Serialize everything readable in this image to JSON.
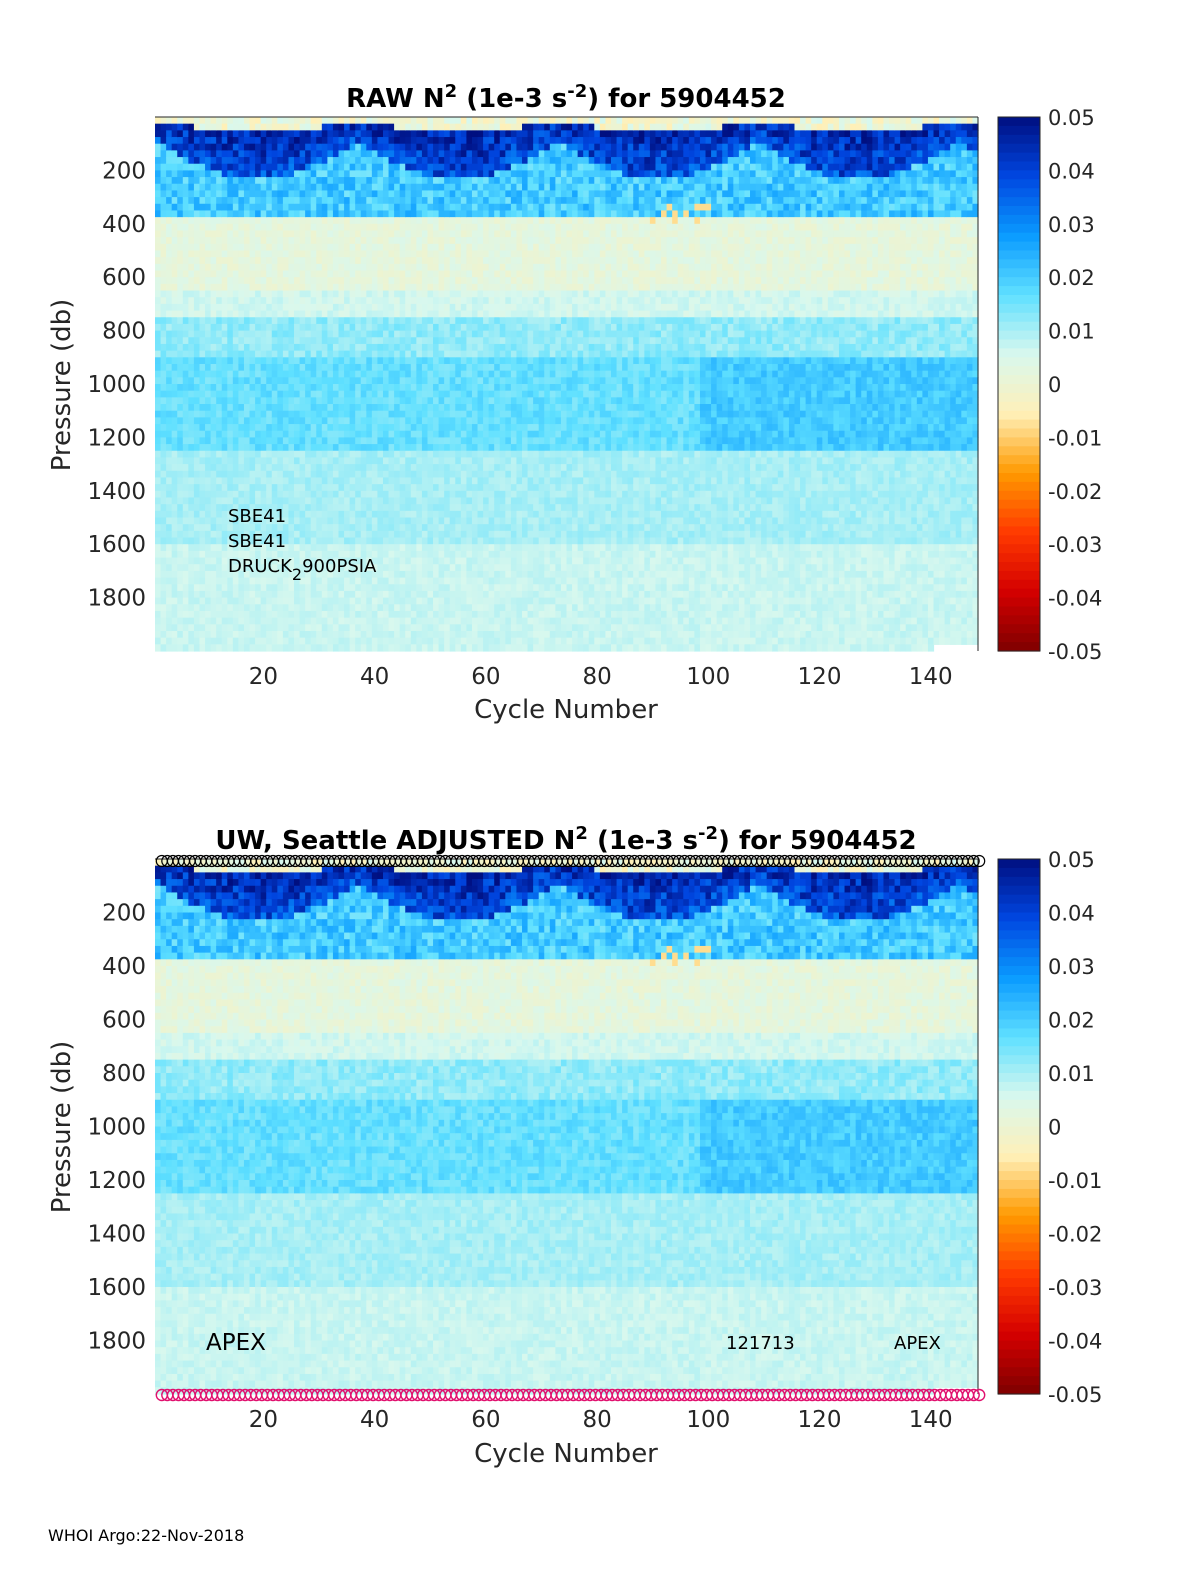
{
  "footer": "WHOI Argo:22-Nov-2018",
  "colorbar": {
    "ticks": [
      "0.05",
      "0.04",
      "0.03",
      "0.02",
      "0.01",
      "0",
      "-0.01",
      "-0.02",
      "-0.03",
      "-0.04",
      "-0.05"
    ],
    "range": [
      -0.05,
      0.05
    ],
    "colormap": [
      "#7f0000",
      "#d40000",
      "#ff3a00",
      "#ff9a00",
      "#fff0b8",
      "#d8f8ee",
      "#5fe0ff",
      "#0a9bff",
      "#0046e0",
      "#000f80"
    ]
  },
  "chart_data": [
    {
      "type": "heatmap",
      "title_pre": "RAW N",
      "title_sup": "2",
      "title_mid": " (1e-3 s",
      "title_sup2": "-2",
      "title_post": ") for 5904452",
      "xlabel": "Cycle Number",
      "ylabel": "Pressure (db)",
      "x_ticks": [
        "20",
        "40",
        "60",
        "80",
        "100",
        "120",
        "140"
      ],
      "y_ticks": [
        "200",
        "400",
        "600",
        "800",
        "1000",
        "1200",
        "1400",
        "1600",
        "1800"
      ],
      "xlim": [
        1,
        148
      ],
      "ylim": [
        0,
        2000
      ],
      "y_reversed": true,
      "notes": [
        "SBE41",
        "SBE41",
        "DRUCK",
        "2",
        "900PSIA"
      ],
      "markers": false
    },
    {
      "type": "heatmap",
      "title_pre": "UW, Seattle  ADJUSTED N",
      "title_sup": "2",
      "title_mid": " (1e-3 s",
      "title_sup2": "-2",
      "title_post": ") for 5904452",
      "xlabel": "Cycle Number",
      "ylabel": "Pressure (db)",
      "x_ticks": [
        "20",
        "40",
        "60",
        "80",
        "100",
        "120",
        "140"
      ],
      "y_ticks": [
        "200",
        "400",
        "600",
        "800",
        "1000",
        "1200",
        "1400",
        "1600",
        "1800"
      ],
      "xlim": [
        1,
        148
      ],
      "ylim": [
        0,
        2000
      ],
      "y_reversed": true,
      "notes": [
        "APEX",
        "121713",
        "APEX"
      ],
      "markers": true,
      "top_marker_color": "#000000",
      "bottom_marker_color": "#e0106e"
    }
  ]
}
